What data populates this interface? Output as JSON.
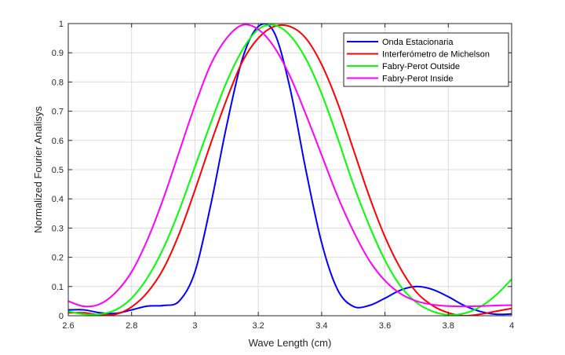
{
  "chart_data": {
    "type": "line",
    "title": "",
    "xlabel": "Wave Length (cm)",
    "ylabel": "Normalized Fourier Analisys",
    "xlim": [
      2.6,
      4
    ],
    "ylim": [
      0,
      1
    ],
    "xticks": [
      2.6,
      2.8,
      3,
      3.2,
      3.4,
      3.6,
      3.8,
      4
    ],
    "xtick_labels": [
      "2.6",
      "2.8",
      "3",
      "3.2",
      "3.4",
      "3.6",
      "3.8",
      "4"
    ],
    "yticks": [
      0,
      0.1,
      0.2,
      0.3,
      0.4,
      0.5,
      0.6,
      0.7,
      0.8,
      0.9,
      1
    ],
    "ytick_labels": [
      "0",
      "0.1",
      "0.2",
      "0.3",
      "0.4",
      "0.5",
      "0.6",
      "0.7",
      "0.8",
      "0.9",
      "1"
    ],
    "grid": true,
    "legend": "top-right",
    "series": [
      {
        "name": "Onda Estacionaria",
        "color": "#0000ff",
        "points": [
          [
            2.6,
            0.02
          ],
          [
            2.65,
            0.02
          ],
          [
            2.7,
            0.01
          ],
          [
            2.75,
            0.008
          ],
          [
            2.8,
            0.02
          ],
          [
            2.85,
            0.033
          ],
          [
            2.9,
            0.035
          ],
          [
            2.95,
            0.05
          ],
          [
            3.0,
            0.15
          ],
          [
            3.05,
            0.38
          ],
          [
            3.1,
            0.65
          ],
          [
            3.15,
            0.88
          ],
          [
            3.2,
            0.99
          ],
          [
            3.25,
            0.97
          ],
          [
            3.3,
            0.78
          ],
          [
            3.35,
            0.5
          ],
          [
            3.4,
            0.25
          ],
          [
            3.45,
            0.09
          ],
          [
            3.5,
            0.032
          ],
          [
            3.55,
            0.035
          ],
          [
            3.6,
            0.06
          ],
          [
            3.65,
            0.088
          ],
          [
            3.7,
            0.1
          ],
          [
            3.75,
            0.09
          ],
          [
            3.8,
            0.065
          ],
          [
            3.85,
            0.035
          ],
          [
            3.9,
            0.015
          ],
          [
            3.95,
            0.005
          ],
          [
            4.0,
            0.006
          ]
        ]
      },
      {
        "name": "Interferómetro de Michelson",
        "color": "#ff0000",
        "points": [
          [
            2.6,
            0.01
          ],
          [
            2.65,
            0.01
          ],
          [
            2.7,
            0.003
          ],
          [
            2.75,
            0.005
          ],
          [
            2.8,
            0.03
          ],
          [
            2.85,
            0.08
          ],
          [
            2.9,
            0.16
          ],
          [
            2.95,
            0.28
          ],
          [
            3.0,
            0.43
          ],
          [
            3.05,
            0.59
          ],
          [
            3.1,
            0.74
          ],
          [
            3.15,
            0.87
          ],
          [
            3.2,
            0.95
          ],
          [
            3.25,
            0.99
          ],
          [
            3.3,
            0.99
          ],
          [
            3.35,
            0.95
          ],
          [
            3.4,
            0.86
          ],
          [
            3.45,
            0.73
          ],
          [
            3.5,
            0.57
          ],
          [
            3.55,
            0.41
          ],
          [
            3.6,
            0.27
          ],
          [
            3.65,
            0.16
          ],
          [
            3.7,
            0.08
          ],
          [
            3.75,
            0.035
          ],
          [
            3.8,
            0.01
          ],
          [
            3.85,
            0.0
          ],
          [
            3.9,
            0.005
          ],
          [
            3.95,
            0.015
          ],
          [
            4.0,
            0.025
          ]
        ]
      },
      {
        "name": "Fabry-Perot Outside",
        "color": "#00ff00",
        "points": [
          [
            2.6,
            0.015
          ],
          [
            2.65,
            0.005
          ],
          [
            2.7,
            0.005
          ],
          [
            2.75,
            0.02
          ],
          [
            2.8,
            0.06
          ],
          [
            2.85,
            0.13
          ],
          [
            2.9,
            0.23
          ],
          [
            2.95,
            0.36
          ],
          [
            3.0,
            0.51
          ],
          [
            3.05,
            0.66
          ],
          [
            3.1,
            0.8
          ],
          [
            3.15,
            0.91
          ],
          [
            3.2,
            0.98
          ],
          [
            3.25,
            0.995
          ],
          [
            3.3,
            0.96
          ],
          [
            3.35,
            0.88
          ],
          [
            3.4,
            0.76
          ],
          [
            3.45,
            0.61
          ],
          [
            3.5,
            0.45
          ],
          [
            3.55,
            0.31
          ],
          [
            3.6,
            0.19
          ],
          [
            3.65,
            0.1
          ],
          [
            3.7,
            0.045
          ],
          [
            3.75,
            0.015
          ],
          [
            3.8,
            0.003
          ],
          [
            3.85,
            0.008
          ],
          [
            3.9,
            0.03
          ],
          [
            3.95,
            0.07
          ],
          [
            4.0,
            0.125
          ]
        ]
      },
      {
        "name": "Fabry-Perot Inside",
        "color": "#ff00ff",
        "points": [
          [
            2.6,
            0.05
          ],
          [
            2.65,
            0.032
          ],
          [
            2.7,
            0.04
          ],
          [
            2.75,
            0.08
          ],
          [
            2.8,
            0.15
          ],
          [
            2.85,
            0.26
          ],
          [
            2.9,
            0.4
          ],
          [
            2.95,
            0.56
          ],
          [
            3.0,
            0.72
          ],
          [
            3.05,
            0.86
          ],
          [
            3.1,
            0.95
          ],
          [
            3.15,
            0.995
          ],
          [
            3.2,
            0.98
          ],
          [
            3.25,
            0.92
          ],
          [
            3.3,
            0.82
          ],
          [
            3.35,
            0.69
          ],
          [
            3.4,
            0.55
          ],
          [
            3.45,
            0.41
          ],
          [
            3.5,
            0.29
          ],
          [
            3.55,
            0.19
          ],
          [
            3.6,
            0.12
          ],
          [
            3.65,
            0.075
          ],
          [
            3.7,
            0.05
          ],
          [
            3.75,
            0.038
          ],
          [
            3.8,
            0.033
          ],
          [
            3.85,
            0.032
          ],
          [
            3.9,
            0.033
          ],
          [
            3.95,
            0.035
          ],
          [
            4.0,
            0.036
          ]
        ]
      }
    ]
  }
}
